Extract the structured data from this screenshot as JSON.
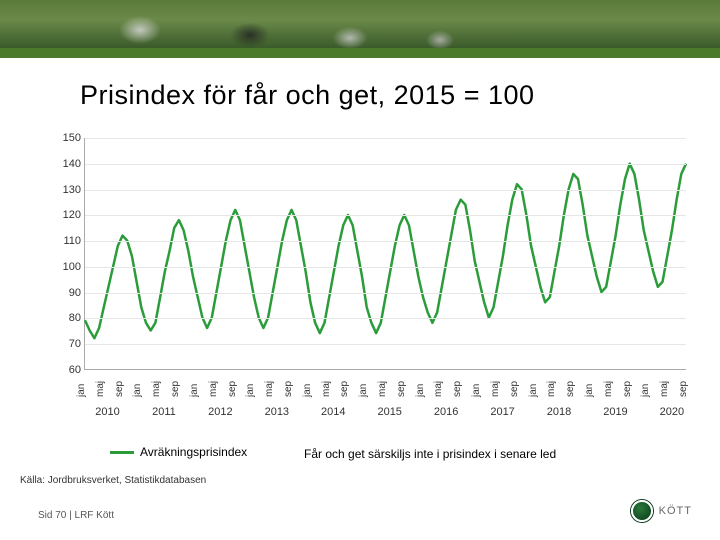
{
  "title": "Prisindex för får och get, 2015 = 100",
  "chart": {
    "type": "line",
    "ylim": [
      60,
      150
    ],
    "yticks": [
      60,
      70,
      80,
      90,
      100,
      110,
      120,
      130,
      140,
      150
    ],
    "line_color": "#2a9d3a",
    "line_width": 2.5,
    "grid_color": "#e6e6e6",
    "axis_color": "#999999",
    "background_color": "#ffffff",
    "x_months": [
      "jan",
      "maj",
      "sep"
    ],
    "years": [
      "2010",
      "2011",
      "2012",
      "2013",
      "2014",
      "2015",
      "2016",
      "2017",
      "2018",
      "2019",
      "2020"
    ],
    "values": [
      79,
      75,
      72,
      76,
      84,
      92,
      100,
      108,
      112,
      110,
      104,
      94,
      84,
      78,
      75,
      78,
      88,
      98,
      106,
      115,
      118,
      114,
      106,
      96,
      88,
      80,
      76,
      80,
      90,
      100,
      110,
      118,
      122,
      118,
      108,
      98,
      88,
      80,
      76,
      80,
      90,
      100,
      110,
      118,
      122,
      118,
      108,
      98,
      86,
      78,
      74,
      78,
      88,
      98,
      108,
      116,
      120,
      116,
      106,
      96,
      84,
      78,
      74,
      78,
      88,
      98,
      108,
      116,
      120,
      116,
      106,
      96,
      88,
      82,
      78,
      82,
      92,
      102,
      112,
      122,
      126,
      124,
      114,
      102,
      94,
      86,
      80,
      84,
      94,
      104,
      116,
      126,
      132,
      130,
      120,
      108,
      100,
      92,
      86,
      88,
      98,
      108,
      120,
      130,
      136,
      134,
      124,
      112,
      104,
      96,
      90,
      92,
      102,
      112,
      124,
      134,
      140,
      136,
      126,
      114,
      106,
      98,
      92,
      94,
      104,
      114,
      126,
      136,
      140
    ]
  },
  "legend_label": "Avräkningsprisindex",
  "note_text": "Får och get särskiljs inte i prisindex i senare led",
  "source_text": "Källa: Jordbruksverket, Statistikdatabasen",
  "footer_page": "Sid 70 | LRF Kött",
  "footer_brand": "KÖTT"
}
